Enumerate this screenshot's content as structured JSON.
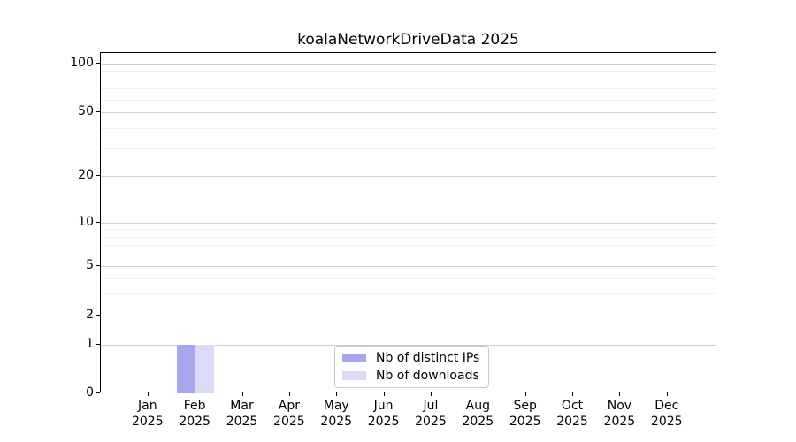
{
  "figure": {
    "title": "koalaNetworkDriveData 2025"
  },
  "chart_data": {
    "type": "bar",
    "title": "koalaNetworkDriveData 2025",
    "xlabel": "",
    "ylabel": "",
    "yscale": "symlog",
    "ylim": [
      0,
      120
    ],
    "grid": "both-horizontal",
    "legend_position": "lower center",
    "categories": [
      "Jan 2025",
      "Feb 2025",
      "Mar 2025",
      "Apr 2025",
      "May 2025",
      "Jun 2025",
      "Jul 2025",
      "Aug 2025",
      "Sep 2025",
      "Oct 2025",
      "Nov 2025",
      "Dec 2025"
    ],
    "x_tick_labels": [
      {
        "month": "Jan",
        "year": "2025"
      },
      {
        "month": "Feb",
        "year": "2025"
      },
      {
        "month": "Mar",
        "year": "2025"
      },
      {
        "month": "Apr",
        "year": "2025"
      },
      {
        "month": "May",
        "year": "2025"
      },
      {
        "month": "Jun",
        "year": "2025"
      },
      {
        "month": "Jul",
        "year": "2025"
      },
      {
        "month": "Aug",
        "year": "2025"
      },
      {
        "month": "Sep",
        "year": "2025"
      },
      {
        "month": "Oct",
        "year": "2025"
      },
      {
        "month": "Nov",
        "year": "2025"
      },
      {
        "month": "Dec",
        "year": "2025"
      }
    ],
    "y_major_ticks": [
      0,
      1,
      2,
      5,
      10,
      20,
      50,
      100
    ],
    "y_minor_gridlines": [
      3,
      4,
      6,
      7,
      8,
      9,
      30,
      40,
      60,
      70,
      80,
      90
    ],
    "series": [
      {
        "name": "Nb of distinct IPs",
        "color": "#a6a6f1",
        "values": [
          0,
          1,
          0,
          0,
          0,
          0,
          0,
          0,
          0,
          0,
          0,
          0
        ]
      },
      {
        "name": "Nb of downloads",
        "color": "#dbdbf7",
        "values": [
          0,
          1,
          0,
          0,
          0,
          0,
          0,
          0,
          0,
          0,
          0,
          0
        ]
      }
    ],
    "colors": {
      "grid_major": "#cfcfcf",
      "grid_minor": "#efefef",
      "spine": "#000000",
      "text": "#000000",
      "background": "#ffffff"
    }
  }
}
